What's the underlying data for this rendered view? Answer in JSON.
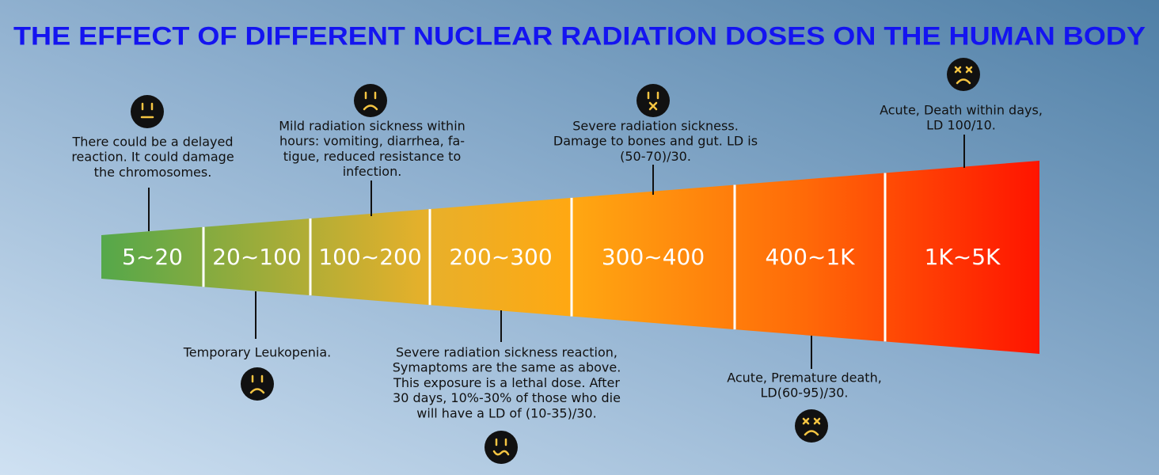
{
  "title": "THE EFFECT OF DIFFERENT NUCLEAR RADIATION DOSES ON THE HUMAN BODY",
  "segments": [
    {
      "label": "5~20",
      "annotation": [
        "There could be a delayed",
        "reaction. It could damage",
        "the chromosomes."
      ]
    },
    {
      "label": "20~100",
      "annotation": [
        "Temporary Leukopenia."
      ]
    },
    {
      "label": "100~200",
      "annotation": [
        "Mild radiation sickness within",
        "hours: vomiting, diarrhea, fa-",
        "tigue, reduced resistance to",
        "infection."
      ]
    },
    {
      "label": "200~300",
      "annotation": [
        "Severe radiation sickness reaction,",
        "Symaptoms are the same as above.",
        "This exposure is a lethal dose. After",
        "30 days, 10%-30% of those who die",
        "will have a LD of (10-35)/30."
      ]
    },
    {
      "label": "300~400",
      "annotation": [
        "Severe radiation sickness.",
        "Damage to bones and gut. LD is",
        "(50-70)/30."
      ]
    },
    {
      "label": "400~1K",
      "annotation": [
        "Acute, Premature death,",
        "LD(60-95)/30."
      ]
    },
    {
      "label": "1K~5K",
      "annotation": [
        "Acute, Death within days,",
        "LD 100/10."
      ]
    }
  ]
}
